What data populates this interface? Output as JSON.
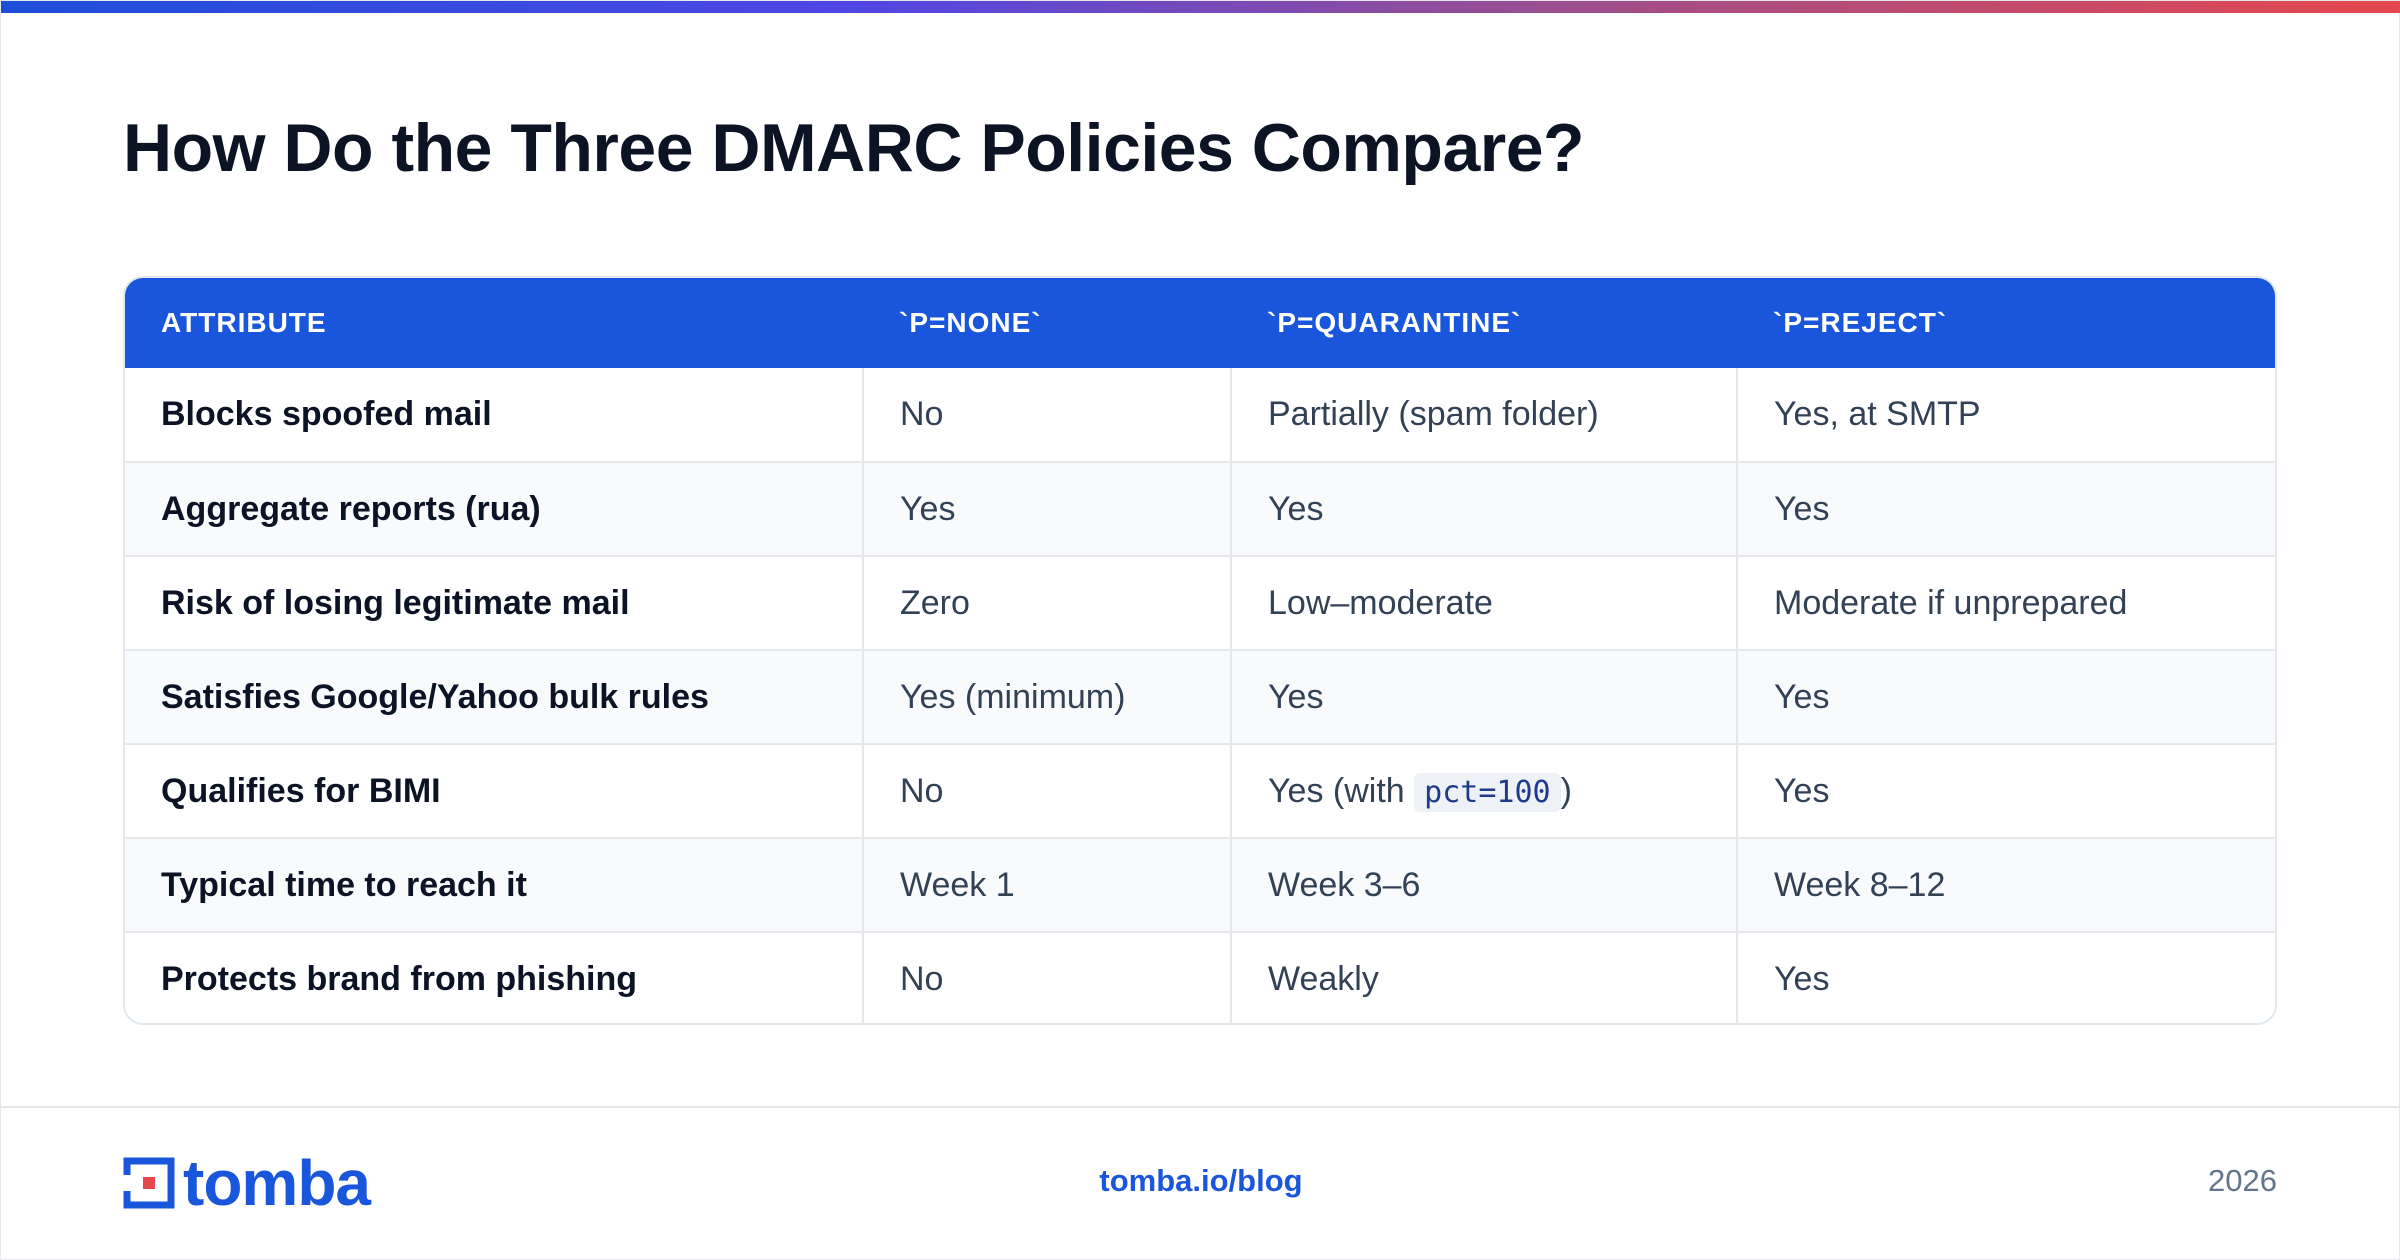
{
  "title": "How Do the Three DMARC Policies Compare?",
  "table": {
    "headers": [
      "ATTRIBUTE",
      "`P=NONE`",
      "`P=QUARANTINE`",
      "`P=REJECT`"
    ],
    "rows": [
      {
        "attribute": "Blocks spoofed mail",
        "none": "No",
        "quarantine": "Partially (spam folder)",
        "reject": "Yes, at SMTP"
      },
      {
        "attribute": "Aggregate reports (rua)",
        "none": "Yes",
        "quarantine": "Yes",
        "reject": "Yes"
      },
      {
        "attribute": "Risk of losing legitimate mail",
        "none": "Zero",
        "quarantine": "Low–moderate",
        "reject": "Moderate if unprepared"
      },
      {
        "attribute": "Satisfies Google/Yahoo bulk rules",
        "none": "Yes (minimum)",
        "quarantine": "Yes",
        "reject": "Yes"
      },
      {
        "attribute": "Qualifies for BIMI",
        "none": "No",
        "quarantine_prefix": "Yes (with",
        "quarantine_code": "pct=100",
        "quarantine_suffix": ")",
        "reject": "Yes"
      },
      {
        "attribute": "Typical time to reach it",
        "none": "Week 1",
        "quarantine": "Week 3–6",
        "reject": "Week 8–12"
      },
      {
        "attribute": "Protects brand from phishing",
        "none": "No",
        "quarantine": "Weakly",
        "reject": "Yes"
      }
    ]
  },
  "footer": {
    "logo_text": "tomba",
    "url": "tomba.io/blog",
    "year": "2026"
  },
  "colors": {
    "accent": "#1a56db",
    "header_bg": "#1a56db",
    "gradient_start": "#1d4ed8",
    "gradient_end": "#e5484d"
  }
}
